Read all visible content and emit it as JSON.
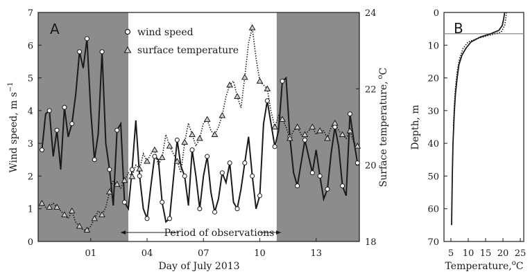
{
  "chart_data": [
    {
      "panel": "A",
      "type": "line",
      "xlabel": "Day of July 2013",
      "ylabel_left_main": "Wind speed, m s",
      "ylabel_left_sup": "−1",
      "ylabel_right_main": "Surface temperature,",
      "ylabel_right_sup": "o",
      "ylabel_right_unit": "C",
      "x_ticks": [
        "01",
        "04",
        "07",
        "10",
        "13"
      ],
      "y_left_ticks": [
        "0",
        "1",
        "2",
        "3",
        "4",
        "5",
        "6",
        "7"
      ],
      "y_right_ticks": [
        "18",
        "20",
        "22",
        "24"
      ],
      "ylim_left": [
        0,
        7
      ],
      "ylim_right": [
        18,
        24
      ],
      "xlim": [
        -1.8,
        15.3
      ],
      "annotation": "Period of observations",
      "shaded_regions": [
        [
          -1.8,
          3.0
        ],
        [
          10.9,
          15.3
        ]
      ],
      "legend_position": "top-center",
      "series": [
        {
          "name": "wind speed",
          "axis": "left",
          "marker": "circle",
          "line": "solid",
          "x": [
            -1.6,
            -1.4,
            -1.2,
            -1.0,
            -0.8,
            -0.6,
            -0.4,
            -0.2,
            0.0,
            0.2,
            0.4,
            0.6,
            0.8,
            1.0,
            1.2,
            1.4,
            1.6,
            1.8,
            2.0,
            2.2,
            2.4,
            2.6,
            2.8,
            3.0,
            3.2,
            3.4,
            3.6,
            3.8,
            4.0,
            4.2,
            4.4,
            4.6,
            4.8,
            5.0,
            5.2,
            5.4,
            5.6,
            5.8,
            6.0,
            6.2,
            6.4,
            6.6,
            6.8,
            7.0,
            7.2,
            7.4,
            7.6,
            7.8,
            8.0,
            8.2,
            8.4,
            8.6,
            8.8,
            9.0,
            9.2,
            9.4,
            9.6,
            9.8,
            10.0,
            10.2,
            10.4,
            10.6,
            10.8,
            11.0,
            11.2,
            11.4,
            11.6,
            11.8,
            12.0,
            12.2,
            12.4,
            12.6,
            12.8,
            13.0,
            13.2,
            13.4,
            13.6,
            13.8,
            14.0,
            14.2,
            14.4,
            14.6,
            14.8,
            15.0,
            15.2
          ],
          "values": [
            2.8,
            3.9,
            4.0,
            2.6,
            3.4,
            2.2,
            4.1,
            3.2,
            3.6,
            4.5,
            5.8,
            5.3,
            6.2,
            4.0,
            2.5,
            3.3,
            5.8,
            3.0,
            2.2,
            1.1,
            3.4,
            3.6,
            1.2,
            1.0,
            2.2,
            3.7,
            2.0,
            1.0,
            0.7,
            1.7,
            2.6,
            2.5,
            1.2,
            0.6,
            0.7,
            1.9,
            3.1,
            2.3,
            2.0,
            1.1,
            2.8,
            2.0,
            1.0,
            2.0,
            2.6,
            1.5,
            0.9,
            1.3,
            2.1,
            1.8,
            2.4,
            1.2,
            1.0,
            1.6,
            2.4,
            3.2,
            2.0,
            1.0,
            1.4,
            3.6,
            4.3,
            3.6,
            2.9,
            3.4,
            4.9,
            5.0,
            3.2,
            2.1,
            1.7,
            2.4,
            3.1,
            2.6,
            2.1,
            2.8,
            2.0,
            1.3,
            1.6,
            2.7,
            3.5,
            2.9,
            1.7,
            1.4,
            3.9,
            3.1,
            2.4
          ]
        },
        {
          "name": "surface temperature",
          "axis": "right",
          "marker": "triangle",
          "line": "dotted",
          "x": [
            -1.6,
            -1.4,
            -1.2,
            -1.0,
            -0.8,
            -0.6,
            -0.4,
            -0.2,
            0.0,
            0.2,
            0.4,
            0.6,
            0.8,
            1.0,
            1.2,
            1.4,
            1.6,
            1.8,
            2.0,
            2.2,
            2.4,
            2.6,
            2.8,
            3.0,
            3.2,
            3.4,
            3.6,
            3.8,
            4.0,
            4.2,
            4.4,
            4.6,
            4.8,
            5.0,
            5.2,
            5.4,
            5.6,
            5.8,
            6.0,
            6.2,
            6.4,
            6.6,
            6.8,
            7.0,
            7.2,
            7.4,
            7.6,
            7.8,
            8.0,
            8.2,
            8.4,
            8.6,
            8.8,
            9.0,
            9.2,
            9.4,
            9.6,
            9.8,
            10.0,
            10.2,
            10.4,
            10.6,
            10.8,
            11.0,
            11.2,
            11.4,
            11.6,
            11.8,
            12.0,
            12.2,
            12.4,
            12.6,
            12.8,
            13.0,
            13.2,
            13.4,
            13.6,
            13.8,
            14.0,
            14.2,
            14.4,
            14.6,
            14.8,
            15.0,
            15.2
          ],
          "values": [
            19.0,
            18.9,
            18.9,
            19.0,
            18.9,
            18.8,
            18.7,
            18.6,
            18.8,
            18.5,
            18.4,
            18.3,
            18.3,
            18.4,
            18.6,
            18.8,
            18.7,
            18.9,
            19.3,
            19.6,
            19.5,
            19.4,
            19.6,
            19.8,
            19.7,
            20.0,
            19.9,
            20.3,
            20.1,
            20.3,
            20.4,
            20.0,
            20.2,
            20.8,
            20.5,
            20.3,
            20.1,
            19.8,
            20.6,
            21.1,
            20.8,
            20.5,
            20.7,
            21.1,
            21.2,
            20.9,
            20.8,
            21.0,
            21.3,
            21.8,
            22.1,
            22.2,
            21.8,
            21.5,
            22.3,
            23.2,
            23.6,
            22.8,
            22.2,
            22.1,
            22.0,
            21.4,
            21.0,
            21.3,
            21.2,
            21.0,
            20.7,
            20.9,
            21.0,
            20.8,
            20.8,
            20.9,
            21.0,
            20.8,
            20.9,
            20.9,
            20.7,
            21.0,
            21.1,
            20.9,
            20.8,
            20.7,
            20.9,
            20.6,
            20.5
          ]
        }
      ]
    },
    {
      "panel": "B",
      "type": "line",
      "xlabel_main": "Temperature,",
      "xlabel_sup": "o",
      "xlabel_unit": "C",
      "ylabel": "Depth, m",
      "x_ticks": [
        "5",
        "10",
        "15",
        "20",
        "25"
      ],
      "y_ticks": [
        "0",
        "10",
        "20",
        "30",
        "40",
        "50",
        "60",
        "70"
      ],
      "xlim": [
        3,
        26
      ],
      "ylim": [
        0,
        70
      ],
      "y_inverted": true,
      "reference_depth": 6.5,
      "series": [
        {
          "line": "solid",
          "temperature": [
            20.5,
            20.2,
            19.8,
            18.8,
            16.5,
            13.5,
            10.8,
            9.3,
            8.2,
            7.3,
            6.8,
            6.3,
            6.0,
            5.8,
            5.6,
            5.4,
            5.3,
            5.2
          ],
          "depth": [
            0,
            2,
            4,
            5.5,
            6.5,
            7.5,
            9,
            11,
            13,
            16,
            20,
            25,
            30,
            35,
            40,
            50,
            57,
            65
          ]
        },
        {
          "line": "dotted",
          "temperature": [
            21.0,
            20.8,
            20.5,
            19.5,
            16.0,
            12.5,
            10.0,
            8.5,
            7.5,
            6.8,
            6.3,
            6.0,
            5.7
          ],
          "depth": [
            0,
            2,
            4,
            6,
            7,
            8,
            9,
            11,
            14,
            18,
            23,
            28,
            35
          ]
        }
      ]
    }
  ]
}
